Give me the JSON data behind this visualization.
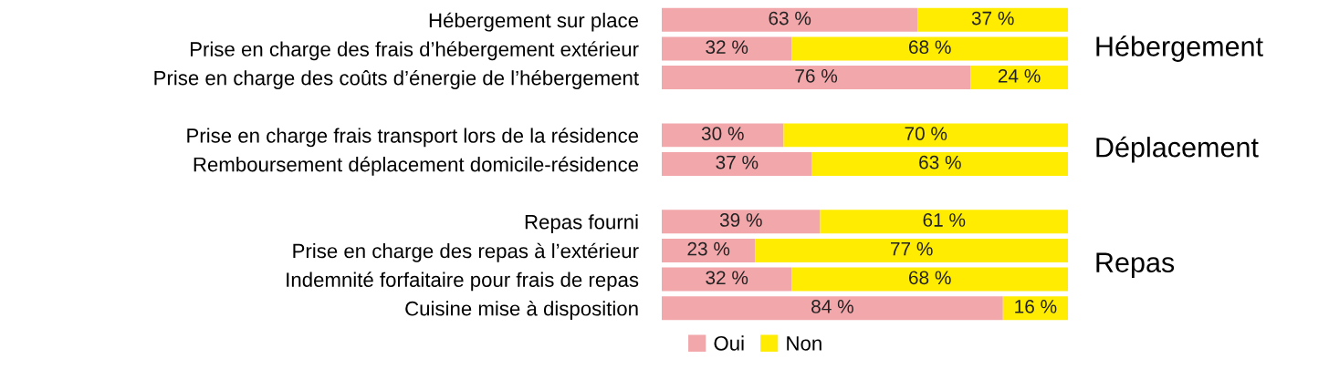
{
  "chart_data": {
    "type": "bar",
    "orientation": "horizontal",
    "stacked": true,
    "categories": [
      "Hébergement sur place",
      "Prise en charge des frais d’hébergement extérieur",
      "Prise en charge des coûts d’énergie de l’hébergement",
      null,
      "Prise en charge frais transport lors de la résidence",
      "Remboursement déplacement domicile-résidence",
      null,
      "Repas fourni",
      "Prise en charge des repas à l’extérieur",
      "Indemnité forfaitaire pour frais de repas",
      "Cuisine mise à disposition"
    ],
    "series": [
      {
        "name": "Oui",
        "color": "#f2a7ab",
        "values": [
          63,
          32,
          76,
          null,
          30,
          37,
          null,
          39,
          23,
          32,
          84
        ],
        "value_labels": [
          "63 %",
          "32 %",
          "76 %",
          null,
          "30 %",
          "37 %",
          null,
          "39 %",
          "23 %",
          "32 %",
          "84 %"
        ]
      },
      {
        "name": "Non",
        "color": "#ffec00",
        "values": [
          37,
          68,
          24,
          null,
          70,
          63,
          null,
          61,
          77,
          68,
          16
        ],
        "value_labels": [
          "37 %",
          "68 %",
          "24 %",
          null,
          "70 %",
          "63 %",
          null,
          "61 %",
          "77 %",
          "68 %",
          "16 %"
        ]
      }
    ],
    "annotations": [
      "Hébergement",
      "Déplacement",
      "Repas"
    ],
    "legend": "bottom",
    "grid": false
  }
}
